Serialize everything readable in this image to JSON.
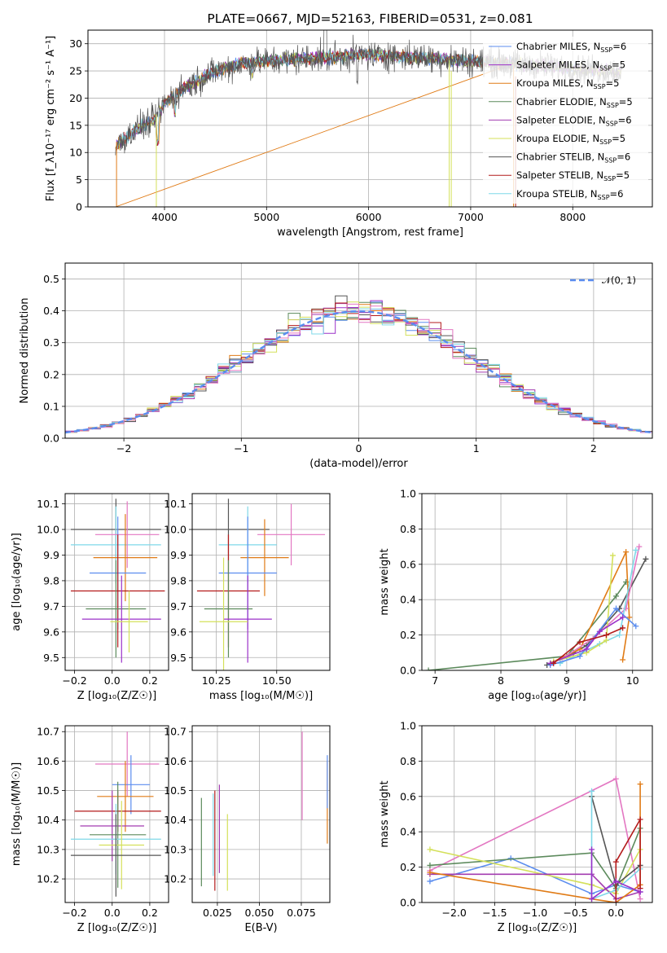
{
  "colors": {
    "Chabrier MILES": "#5b8def",
    "Salpeter MILES": "#9b30c9",
    "Kroupa MILES": "#e07b16",
    "Chabrier ELODIE": "#5c8a5c",
    "Salpeter ELODIE": "#a33cb0",
    "Kroupa ELODIE": "#d4e05a",
    "Chabrier STELIB": "#555555",
    "Salpeter STELIB": "#b31b1b",
    "Kroupa STELIB": "#7fd8e8",
    "pink": "#e377c2"
  },
  "chart_data": [
    {
      "id": "spectrum",
      "type": "line",
      "title": "PLATE=0667, MJD=52163, FIBERID=0531, z=0.081",
      "xlabel": "wavelength [Angstrom, rest frame]",
      "ylabel": "Flux [f_λ10⁻¹⁷ erg cm⁻² s⁻¹ A⁻¹]",
      "xlim": [
        3250,
        8780
      ],
      "ylim": [
        0,
        32.5
      ],
      "xticks": [
        4000,
        5000,
        6000,
        7000,
        8000
      ],
      "yticks": [
        0,
        5,
        10,
        15,
        20,
        25,
        30
      ],
      "legend_position": "top-right",
      "legend": [
        {
          "label": "Chabrier MILES, N",
          "sub": "SSP",
          "val": "=6"
        },
        {
          "label": "Salpeter MILES, N",
          "sub": "SSP",
          "val": "=5"
        },
        {
          "label": "Kroupa MILES, N",
          "sub": "SSP",
          "val": "=5"
        },
        {
          "label": "Chabrier ELODIE, N",
          "sub": "SSP",
          "val": "=5"
        },
        {
          "label": "Salpeter ELODIE, N",
          "sub": "SSP",
          "val": "=6"
        },
        {
          "label": "Kroupa ELODIE, N",
          "sub": "SSP",
          "val": "=5"
        },
        {
          "label": "Chabrier STELIB, N",
          "sub": "SSP",
          "val": "=6"
        },
        {
          "label": "Salpeter STELIB, N",
          "sub": "SSP",
          "val": "=5"
        },
        {
          "label": "Kroupa STELIB, N",
          "sub": "SSP",
          "val": "=6"
        }
      ],
      "continuum_points": [
        [
          3520,
          11
        ],
        [
          3700,
          14
        ],
        [
          3900,
          16
        ],
        [
          4000,
          19
        ],
        [
          4200,
          22
        ],
        [
          4500,
          25
        ],
        [
          4800,
          26.5
        ],
        [
          5200,
          27
        ],
        [
          5600,
          27.5
        ],
        [
          6000,
          28
        ],
        [
          6500,
          27.5
        ],
        [
          7000,
          26.8
        ],
        [
          7500,
          26.2
        ],
        [
          8000,
          25.5
        ],
        [
          8500,
          24.8
        ]
      ]
    },
    {
      "id": "residuals",
      "type": "histogram",
      "xlabel": "(data-model)/error",
      "ylabel": "Normed distribution",
      "xlim": [
        -2.5,
        2.5
      ],
      "ylim": [
        0,
        0.55
      ],
      "xticks": [
        -2,
        -1,
        0,
        1,
        2
      ],
      "yticks": [
        0,
        0.1,
        0.2,
        0.3,
        0.4,
        0.5
      ],
      "bin_width": 0.1,
      "legend_position": "top-right",
      "gaussian_label": "𝒩(0, 1)"
    },
    {
      "id": "age_vs_Z",
      "type": "errorbar",
      "xlabel": "Z [log₁₀(Z/Z☉)]",
      "ylabel": "age  [log₁₀(age/yr)]",
      "xlim": [
        -0.25,
        0.3
      ],
      "ylim": [
        9.45,
        10.14
      ],
      "xticks": [
        -0.2,
        0.0,
        0.2
      ],
      "xtick_labels": [
        "−0.2",
        "0.0",
        "0.2"
      ],
      "yticks": [
        9.5,
        9.6,
        9.7,
        9.8,
        9.9,
        10.0,
        10.1
      ],
      "points": [
        {
          "x": 0.02,
          "y": 10.0,
          "xerr": 0.24,
          "yerr": 0.12,
          "c": "Chabrier STELIB"
        },
        {
          "x": 0.02,
          "y": 9.94,
          "xerr": 0.24,
          "yerr": 0.15,
          "c": "Kroupa STELIB"
        },
        {
          "x": 0.08,
          "y": 9.98,
          "xerr": 0.17,
          "yerr": 0.13,
          "c": "pink"
        },
        {
          "x": 0.07,
          "y": 9.89,
          "xerr": 0.17,
          "yerr": 0.17,
          "c": "Kroupa MILES"
        },
        {
          "x": 0.03,
          "y": 9.83,
          "xerr": 0.15,
          "yerr": 0.22,
          "c": "Chabrier MILES"
        },
        {
          "x": 0.03,
          "y": 9.76,
          "xerr": 0.25,
          "yerr": 0.22,
          "c": "Salpeter STELIB"
        },
        {
          "x": 0.02,
          "y": 9.69,
          "xerr": 0.16,
          "yerr": 0.19,
          "c": "Chabrier ELODIE"
        },
        {
          "x": 0.05,
          "y": 9.65,
          "xerr": 0.21,
          "yerr": 0.17,
          "c": "Salpeter MILES"
        },
        {
          "x": 0.09,
          "y": 9.64,
          "xerr": 0.1,
          "yerr": 0.12,
          "c": "Kroupa ELODIE"
        }
      ]
    },
    {
      "id": "age_vs_mass",
      "type": "errorbar",
      "xlabel": "mass [log₁₀(M/M☉)]",
      "ylabel": "",
      "xlim": [
        10.15,
        10.72
      ],
      "ylim": [
        9.45,
        10.14
      ],
      "xticks": [
        10.25,
        10.5
      ],
      "xtick_labels": [
        "10.25",
        "10.50"
      ],
      "yticks": [
        9.5,
        9.6,
        9.7,
        9.8,
        9.9,
        10.0,
        10.1
      ],
      "points": [
        {
          "x": 10.3,
          "y": 10.0,
          "xerr": 0.17,
          "yerr": 0.12,
          "c": "Chabrier STELIB"
        },
        {
          "x": 10.38,
          "y": 9.94,
          "xerr": 0.12,
          "yerr": 0.15,
          "c": "Kroupa STELIB"
        },
        {
          "x": 10.56,
          "y": 9.98,
          "xerr": 0.14,
          "yerr": 0.12,
          "c": "pink"
        },
        {
          "x": 10.45,
          "y": 9.89,
          "xerr": 0.1,
          "yerr": 0.15,
          "c": "Kroupa MILES"
        },
        {
          "x": 10.38,
          "y": 9.83,
          "xerr": 0.12,
          "yerr": 0.22,
          "c": "Chabrier MILES"
        },
        {
          "x": 10.3,
          "y": 9.76,
          "xerr": 0.13,
          "yerr": 0.22,
          "c": "Salpeter STELIB"
        },
        {
          "x": 10.3,
          "y": 9.69,
          "xerr": 0.1,
          "yerr": 0.19,
          "c": "Chabrier ELODIE"
        },
        {
          "x": 10.38,
          "y": 9.65,
          "xerr": 0.1,
          "yerr": 0.17,
          "c": "Salpeter MILES"
        },
        {
          "x": 10.28,
          "y": 9.64,
          "xerr": 0.1,
          "yerr": 0.25,
          "c": "Kroupa ELODIE"
        }
      ]
    },
    {
      "id": "mw_vs_age",
      "type": "line",
      "xlabel": "age  [log₁₀(age/yr)]",
      "ylabel": "mass weight",
      "xlim": [
        6.8,
        10.3
      ],
      "ylim": [
        0,
        1
      ],
      "xticks": [
        7,
        8,
        9,
        10
      ],
      "yticks": [
        0.0,
        0.2,
        0.4,
        0.6,
        0.8,
        1.0
      ],
      "series": [
        {
          "c": "Chabrier ELODIE",
          "x": [
            6.9,
            9.0,
            9.75,
            9.9
          ],
          "y": [
            0.0,
            0.08,
            0.42,
            0.5
          ]
        },
        {
          "c": "Chabrier STELIB",
          "x": [
            8.7,
            9.1,
            9.3,
            9.8,
            10.2
          ],
          "y": [
            0.03,
            0.1,
            0.14,
            0.35,
            0.63
          ]
        },
        {
          "c": "Kroupa MILES",
          "x": [
            8.8,
            9.2,
            9.9,
            9.95,
            9.85
          ],
          "y": [
            0.05,
            0.12,
            0.67,
            0.3,
            0.06
          ]
        },
        {
          "c": "pink",
          "x": [
            8.9,
            9.4,
            9.9,
            10.1
          ],
          "y": [
            0.06,
            0.18,
            0.35,
            0.7
          ]
        },
        {
          "c": "Kroupa STELIB",
          "x": [
            8.9,
            9.5,
            9.8,
            10.05
          ],
          "y": [
            0.04,
            0.15,
            0.2,
            0.68
          ]
        },
        {
          "c": "Kroupa ELODIE",
          "x": [
            8.8,
            9.3,
            9.6,
            9.7
          ],
          "y": [
            0.05,
            0.1,
            0.17,
            0.65
          ]
        },
        {
          "c": "Chabrier MILES",
          "x": [
            8.75,
            9.2,
            9.75,
            10.05
          ],
          "y": [
            0.03,
            0.08,
            0.35,
            0.25
          ]
        },
        {
          "c": "Salpeter MILES",
          "x": [
            8.75,
            9.3,
            9.5,
            9.85
          ],
          "y": [
            0.04,
            0.12,
            0.22,
            0.3
          ]
        },
        {
          "c": "Salpeter STELIB",
          "x": [
            8.8,
            9.2,
            9.6,
            9.85
          ],
          "y": [
            0.04,
            0.16,
            0.2,
            0.24
          ]
        }
      ]
    },
    {
      "id": "mass_vs_Z",
      "type": "errorbar",
      "xlabel": "Z [log₁₀(Z/Z☉)]",
      "ylabel": "mass [log₁₀(M/M☉)]",
      "xlim": [
        -0.25,
        0.3
      ],
      "ylim": [
        10.12,
        10.72
      ],
      "xticks": [
        -0.2,
        0.0,
        0.2
      ],
      "xtick_labels": [
        "−0.2",
        "0.0",
        "0.2"
      ],
      "yticks": [
        10.2,
        10.3,
        10.4,
        10.5,
        10.6,
        10.7
      ],
      "points": [
        {
          "x": 0.08,
          "y": 10.59,
          "xerr": 0.17,
          "yerr": 0.11,
          "c": "pink"
        },
        {
          "x": 0.1,
          "y": 10.52,
          "xerr": 0.1,
          "yerr": 0.1,
          "c": "Chabrier MILES"
        },
        {
          "x": 0.07,
          "y": 10.48,
          "xerr": 0.15,
          "yerr": 0.12,
          "c": "Kroupa MILES"
        },
        {
          "x": 0.03,
          "y": 10.43,
          "xerr": 0.23,
          "yerr": 0.07,
          "c": "Salpeter STELIB"
        },
        {
          "x": 0.0,
          "y": 10.38,
          "xerr": 0.17,
          "yerr": 0.12,
          "c": "Salpeter ELODIE"
        },
        {
          "x": 0.03,
          "y": 10.35,
          "xerr": 0.15,
          "yerr": 0.18,
          "c": "Chabrier ELODIE"
        },
        {
          "x": 0.02,
          "y": 10.335,
          "xerr": 0.24,
          "yerr": 0.12,
          "c": "Kroupa STELIB"
        },
        {
          "x": 0.05,
          "y": 10.315,
          "xerr": 0.12,
          "yerr": 0.15,
          "c": "Kroupa ELODIE"
        },
        {
          "x": 0.02,
          "y": 10.28,
          "xerr": 0.24,
          "yerr": 0.14,
          "c": "Chabrier STELIB"
        }
      ]
    },
    {
      "id": "mass_vs_ebv",
      "type": "errorbar",
      "xlabel": "E(B-V)",
      "ylabel": "",
      "xlim": [
        0.01,
        0.092
      ],
      "ylim": [
        10.12,
        10.72
      ],
      "xticks": [
        0.025,
        0.05,
        0.075
      ],
      "xtick_labels": [
        "0.025",
        "0.050",
        "0.075"
      ],
      "yticks": [
        10.2,
        10.3,
        10.4,
        10.5,
        10.6,
        10.7
      ],
      "points": [
        {
          "x": 0.0155,
          "y": 10.325,
          "xerr": 0,
          "yerr": 0.15,
          "c": "Chabrier ELODIE"
        },
        {
          "x": 0.0235,
          "y": 10.33,
          "xerr": 0,
          "yerr": 0.17,
          "c": "Salpeter STELIB"
        },
        {
          "x": 0.0225,
          "y": 10.35,
          "xerr": 0,
          "yerr": 0.14,
          "c": "Kroupa STELIB"
        },
        {
          "x": 0.0262,
          "y": 10.37,
          "xerr": 0,
          "yerr": 0.15,
          "c": "Salpeter ELODIE"
        },
        {
          "x": 0.031,
          "y": 10.29,
          "xerr": 0,
          "yerr": 0.13,
          "c": "Kroupa ELODIE"
        },
        {
          "x": 0.0755,
          "y": 10.55,
          "xerr": 0,
          "yerr": 0.15,
          "c": "pink"
        },
        {
          "x": 0.0905,
          "y": 10.46,
          "xerr": 0,
          "yerr": 0.14,
          "c": "Kroupa MILES"
        },
        {
          "x": 0.0905,
          "y": 10.53,
          "xerr": 0,
          "yerr": 0.09,
          "c": "Chabrier MILES"
        }
      ]
    },
    {
      "id": "mw_vs_Z",
      "type": "line",
      "xlabel": "Z [log₁₀(Z/Z☉)]",
      "ylabel": "mass weight",
      "xlim": [
        -2.4,
        0.45
      ],
      "ylim": [
        0,
        1
      ],
      "xticks": [
        -2.0,
        -1.5,
        -1.0,
        -0.5,
        0.0
      ],
      "xtick_labels": [
        "−2.0",
        "−1.5",
        "−1.0",
        "−0.5",
        "0.0"
      ],
      "yticks": [
        0.0,
        0.2,
        0.4,
        0.6,
        0.8,
        1.0
      ],
      "series": [
        {
          "c": "pink",
          "x": [
            -2.3,
            0.0,
            0.3
          ],
          "y": [
            0.18,
            0.7,
            0.02
          ]
        },
        {
          "c": "Chabrier MILES",
          "x": [
            -2.3,
            -1.3,
            -0.3,
            0.0,
            0.3
          ],
          "y": [
            0.12,
            0.25,
            0.05,
            0.1,
            0.06
          ]
        },
        {
          "c": "Chabrier ELODIE",
          "x": [
            -2.3,
            -0.3,
            0.0,
            0.3
          ],
          "y": [
            0.21,
            0.28,
            0.08,
            0.42
          ]
        },
        {
          "c": "Kroupa ELODIE",
          "x": [
            -2.3,
            -0.3,
            0.0,
            0.3
          ],
          "y": [
            0.3,
            0.1,
            0.05,
            0.3
          ]
        },
        {
          "c": "Salpeter ELODIE",
          "x": [
            -2.3,
            -0.3,
            0.0,
            0.3
          ],
          "y": [
            0.16,
            0.16,
            0.02,
            0.06
          ]
        },
        {
          "c": "Kroupa MILES",
          "x": [
            -2.3,
            -0.3,
            0.0,
            0.3,
            0.3
          ],
          "y": [
            0.17,
            0.02,
            0.0,
            0.1,
            0.67
          ]
        },
        {
          "c": "Chabrier STELIB",
          "x": [
            -0.3,
            0.0,
            0.3
          ],
          "y": [
            0.6,
            0.1,
            0.21
          ]
        },
        {
          "c": "Kroupa STELIB",
          "x": [
            -0.3,
            -0.3,
            0.0,
            0.3
          ],
          "y": [
            0.63,
            0.02,
            0.07,
            0.19
          ]
        },
        {
          "c": "Salpeter STELIB",
          "x": [
            0.0,
            0.0,
            0.3,
            0.3
          ],
          "y": [
            0.0,
            0.23,
            0.47,
            0.08
          ]
        },
        {
          "c": "Salpeter MILES",
          "x": [
            -0.3,
            -0.3,
            0.0,
            0.3
          ],
          "y": [
            0.3,
            0.02,
            0.12,
            0.06
          ]
        }
      ]
    }
  ]
}
